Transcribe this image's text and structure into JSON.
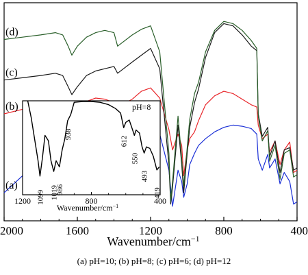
{
  "chart_data": [
    {
      "type": "line",
      "xlabel": "Wavenumber/cm",
      "xlabel_superscript": "−1",
      "xlim": [
        2000,
        400
      ],
      "x_reversed": true,
      "x_ticks": [
        "2000",
        "1600",
        "1200",
        "800",
        "400"
      ],
      "y_ticks_shown": false,
      "legend": "curve labels at left edge",
      "series": [
        {
          "name": "(a)",
          "color": "#1a2fd6",
          "x": [
            2000,
            1900,
            1800,
            1700,
            1600,
            1500,
            1450,
            1400,
            1380,
            1300,
            1250,
            1200,
            1150,
            1100,
            1080,
            1050,
            1030,
            1019,
            1000,
            986,
            960,
            938,
            900,
            850,
            800,
            750,
            700,
            650,
            620,
            612,
            590,
            560,
            550,
            520,
            493,
            470,
            440,
            419,
            400
          ],
          "y": [
            20,
            35,
            48,
            58,
            66,
            71,
            73,
            76,
            80,
            82,
            82,
            80,
            72,
            40,
            8,
            40,
            30,
            16,
            28,
            45,
            55,
            62,
            68,
            74,
            78,
            80,
            79,
            77,
            72,
            50,
            40,
            54,
            42,
            50,
            28,
            38,
            30,
            10,
            12
          ]
        },
        {
          "name": "(b)",
          "color": "#e8262a",
          "x": [
            2000,
            1900,
            1800,
            1700,
            1650,
            1630,
            1600,
            1500,
            1450,
            1400,
            1380,
            1300,
            1250,
            1200,
            1150,
            1100,
            1080,
            1050,
            1030,
            1019,
            1000,
            986,
            960,
            938,
            900,
            850,
            800,
            750,
            700,
            650,
            620,
            612,
            590,
            560,
            550,
            520,
            493,
            470,
            440,
            419,
            400
          ],
          "y": [
            90,
            94,
            98,
            101,
            96,
            92,
            98,
            104,
            103,
            100,
            96,
            103,
            110,
            113,
            104,
            76,
            58,
            72,
            62,
            35,
            58,
            68,
            74,
            84,
            98,
            106,
            110,
            108,
            103,
            98,
            96,
            80,
            68,
            72,
            56,
            66,
            45,
            58,
            65,
            38,
            40
          ]
        },
        {
          "name": "(c)",
          "color": "#1a1a1a",
          "x": [
            2000,
            1900,
            1800,
            1720,
            1680,
            1650,
            1630,
            1600,
            1550,
            1500,
            1450,
            1400,
            1380,
            1300,
            1250,
            1200,
            1150,
            1100,
            1090,
            1080,
            1050,
            1030,
            1019,
            1000,
            986,
            960,
            938,
            900,
            850,
            800,
            750,
            700,
            650,
            620,
            612,
            590,
            560,
            550,
            520,
            493,
            470,
            440,
            419,
            400
          ],
          "y": [
            120,
            122,
            124,
            126,
            124,
            114,
            107,
            114,
            124,
            128,
            130,
            132,
            126,
            136,
            142,
            148,
            130,
            45,
            10,
            25,
            80,
            45,
            20,
            55,
            78,
            100,
            112,
            140,
            162,
            170,
            168,
            160,
            150,
            146,
            90,
            70,
            78,
            52,
            66,
            38,
            58,
            60,
            40,
            42
          ]
        },
        {
          "name": "(d)",
          "color": "#2a5f2a",
          "x": [
            2000,
            1900,
            1800,
            1720,
            1680,
            1650,
            1630,
            1600,
            1550,
            1500,
            1450,
            1400,
            1380,
            1300,
            1250,
            1200,
            1150,
            1100,
            1090,
            1080,
            1050,
            1030,
            1019,
            1000,
            986,
            960,
            938,
            900,
            850,
            800,
            750,
            700,
            650,
            620,
            612,
            590,
            560,
            550,
            520,
            493,
            470,
            440,
            419,
            400
          ],
          "y": [
            156,
            158,
            160,
            162,
            160,
            150,
            142,
            150,
            158,
            162,
            164,
            162,
            150,
            160,
            165,
            168,
            145,
            55,
            12,
            30,
            88,
            50,
            26,
            60,
            85,
            108,
            118,
            145,
            164,
            172,
            170,
            164,
            155,
            148,
            88,
            66,
            75,
            48,
            62,
            32,
            55,
            58,
            34,
            36
          ]
        }
      ],
      "curve_labels": [
        "(d)",
        "(c)",
        "(b)",
        "(a)"
      ]
    },
    {
      "type": "line",
      "inset": true,
      "annotation": "pH=8",
      "xlabel": "Wavenumber/cm",
      "xlabel_superscript": "−1",
      "xlim": [
        1200,
        400
      ],
      "x_reversed": true,
      "x_ticks": [
        "1200",
        "800",
        "400"
      ],
      "peak_labels": [
        "1099",
        "1019",
        "986",
        "938",
        "612",
        "550",
        "493",
        "419"
      ],
      "series": [
        {
          "name": "pH=8",
          "color": "#000000",
          "x": [
            1170,
            1150,
            1130,
            1110,
            1099,
            1085,
            1070,
            1050,
            1035,
            1019,
            1005,
            986,
            970,
            955,
            938,
            920,
            900,
            850,
            800,
            750,
            700,
            660,
            630,
            612,
            600,
            580,
            560,
            550,
            540,
            520,
            505,
            493,
            480,
            460,
            440,
            419,
            405
          ],
          "y": [
            100,
            78,
            50,
            22,
            2,
            25,
            55,
            48,
            22,
            8,
            22,
            14,
            36,
            50,
            74,
            82,
            98,
            99,
            99,
            98,
            95,
            90,
            84,
            65,
            72,
            75,
            62,
            55,
            62,
            58,
            40,
            32,
            40,
            38,
            28,
            10,
            14
          ]
        }
      ]
    }
  ],
  "caption": "(a) pH=10; (b) pH=8; (c) pH=6; (d) pH=12"
}
